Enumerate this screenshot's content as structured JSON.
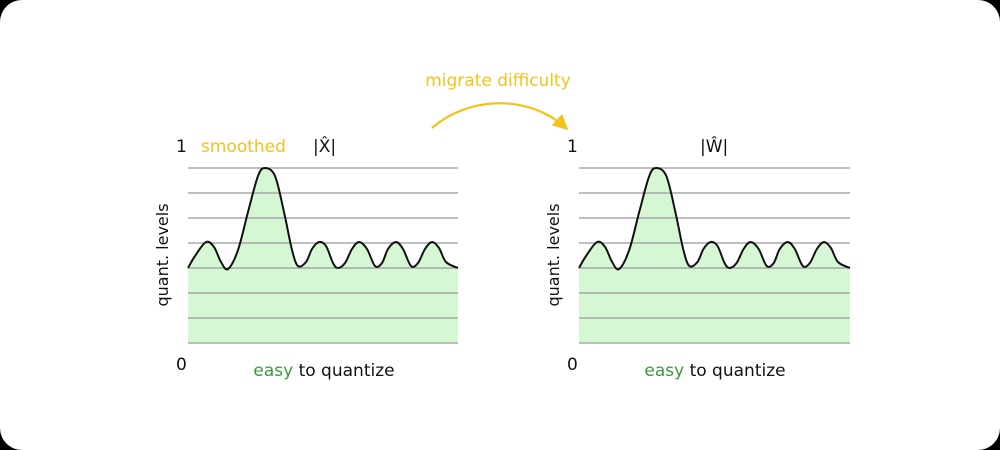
{
  "colors": {
    "accent": "#f5c11a",
    "easy": "#3a9a3a",
    "fill": "#d6f7d4",
    "grid": "#999999",
    "curve": "#111111"
  },
  "arrow_label": "migrate difficulty",
  "panels": [
    {
      "top_value": "1",
      "bottom_value": "0",
      "prefix": "smoothed",
      "title": "|X̂|",
      "y_axis_label": "quant. levels",
      "caption_highlight": "easy",
      "caption_rest": " to quantize"
    },
    {
      "top_value": "1",
      "bottom_value": "0",
      "prefix": "",
      "title": "|Ŵ|",
      "y_axis_label": "quant. levels",
      "caption_highlight": "easy",
      "caption_rest": " to quantize"
    }
  ]
}
